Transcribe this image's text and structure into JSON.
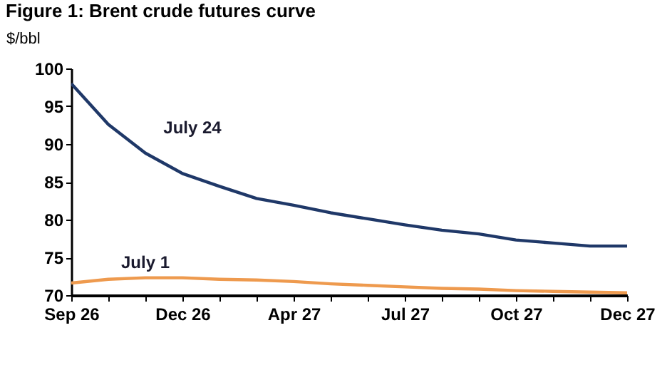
{
  "chart_data": {
    "type": "line",
    "title": "Figure 1: Brent crude futures curve",
    "ylabel": "$/bbl",
    "categories": [
      "Sep 26",
      null,
      null,
      "Dec 26",
      null,
      null,
      "Apr 27",
      null,
      null,
      "Jul 27",
      null,
      null,
      "Oct 27",
      null,
      null,
      "Dec 27"
    ],
    "series": [
      {
        "name": "July 24",
        "color": "#1f3868",
        "values": [
          98.0,
          92.6,
          88.8,
          86.1,
          84.4,
          82.8,
          81.9,
          80.9,
          80.1,
          79.3,
          78.6,
          78.1,
          77.3,
          76.9,
          76.5,
          76.5
        ]
      },
      {
        "name": "July 1",
        "color": "#ee9a4e",
        "values": [
          71.6,
          72.1,
          72.3,
          72.3,
          72.1,
          72.0,
          71.8,
          71.5,
          71.3,
          71.1,
          70.9,
          70.8,
          70.6,
          70.5,
          70.4,
          70.3
        ]
      }
    ],
    "ylim": [
      70,
      100
    ],
    "yticks": [
      70,
      75,
      80,
      85,
      90,
      95,
      100
    ],
    "legend": false
  }
}
